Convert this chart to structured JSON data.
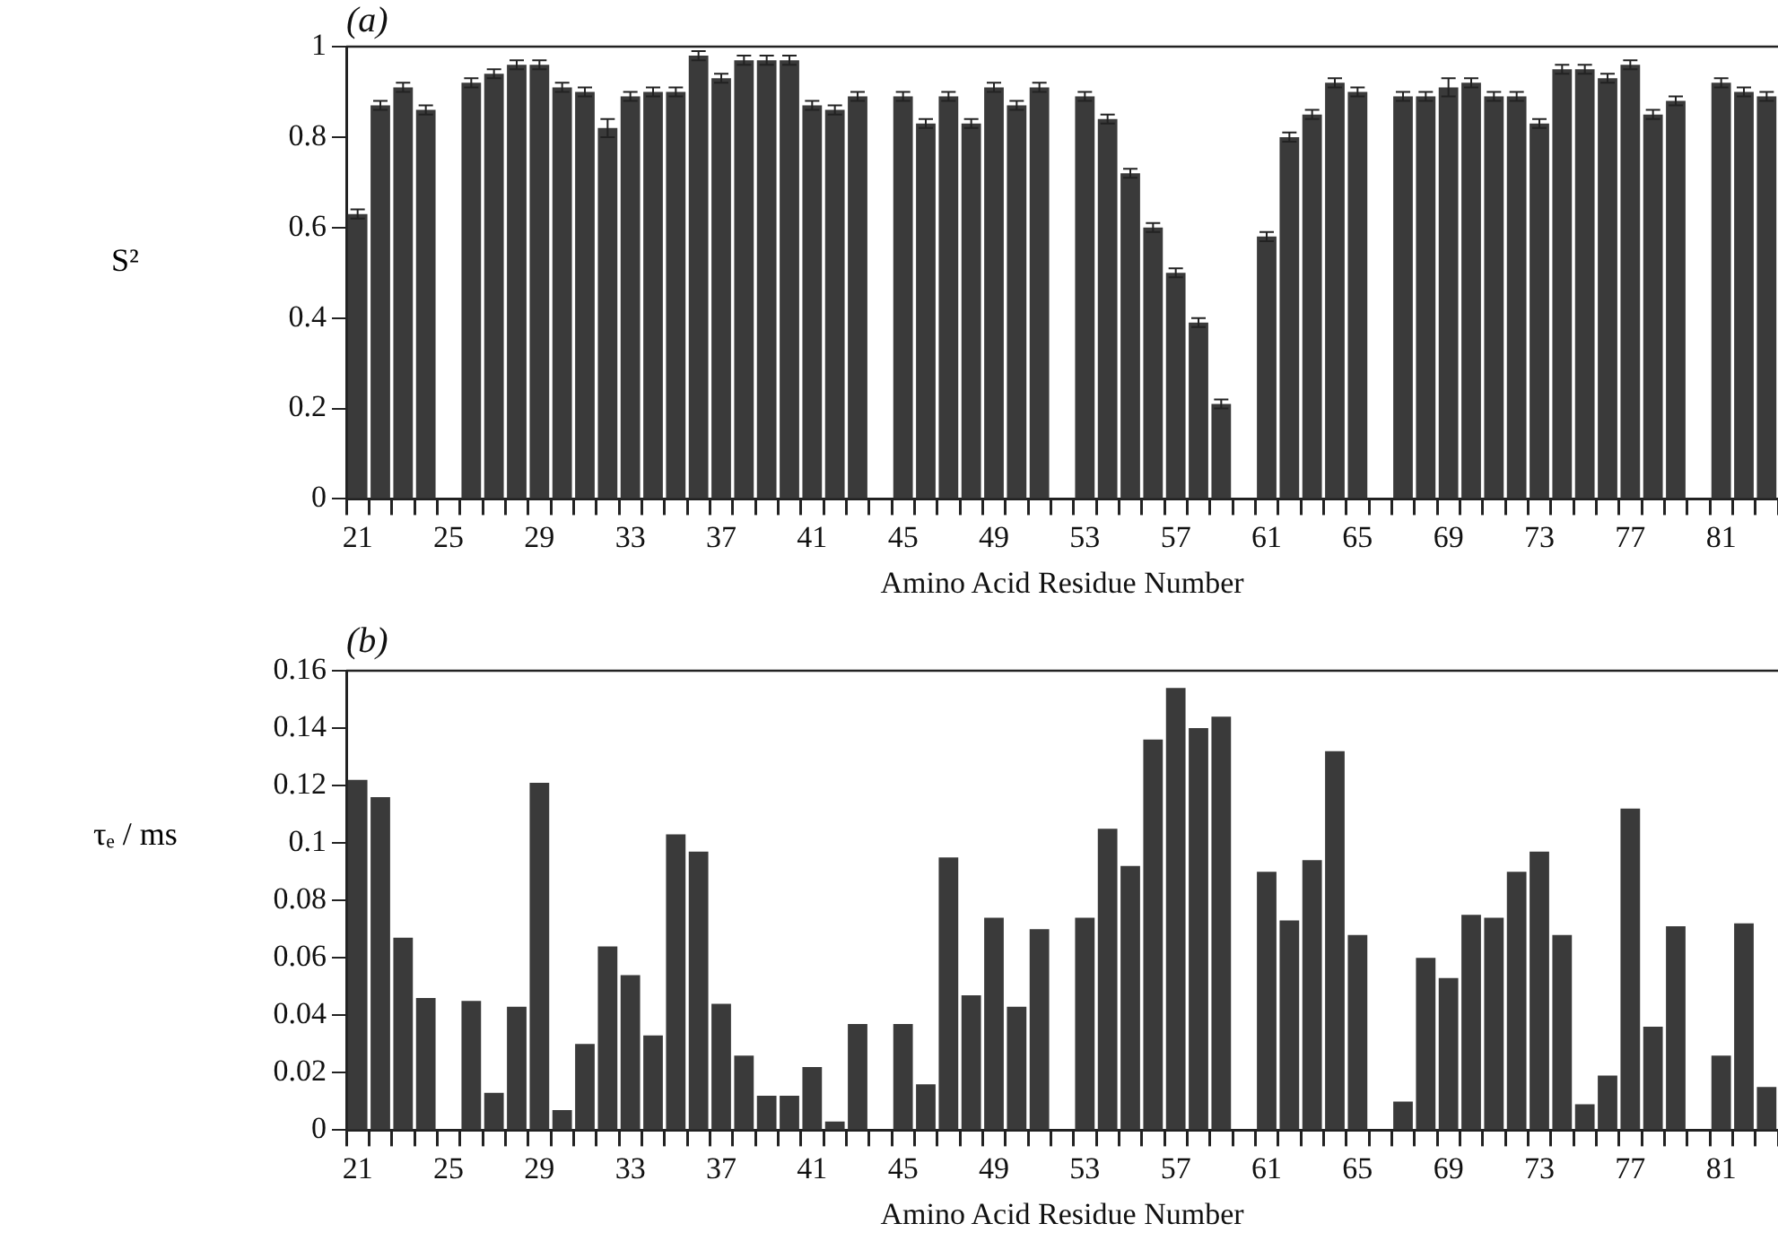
{
  "chart_data": [
    {
      "type": "bar",
      "title": "(a)",
      "ylabel": "S²",
      "xlabel": "Amino Acid Residue Number",
      "color": "#3a3a3a",
      "categories": [
        "21",
        null,
        null,
        null,
        "25",
        null,
        null,
        null,
        "29",
        null,
        null,
        null,
        "33",
        null,
        null,
        null,
        "37",
        null,
        null,
        null,
        "41",
        null,
        null,
        null,
        "45",
        null,
        null,
        null,
        "49",
        null,
        null,
        null,
        "53",
        null,
        null,
        null,
        "57",
        null,
        null,
        null,
        "61",
        null,
        null,
        null,
        "65",
        null,
        null,
        null,
        "69",
        null,
        null,
        null,
        "73",
        null,
        null,
        null,
        "77",
        null,
        null,
        null,
        "81",
        null,
        null
      ],
      "values": [
        0.63,
        0.87,
        0.91,
        0.86,
        null,
        0.92,
        0.94,
        0.96,
        0.96,
        0.91,
        0.9,
        0.82,
        0.89,
        0.9,
        0.9,
        0.98,
        0.93,
        0.97,
        0.97,
        0.97,
        0.87,
        0.86,
        0.89,
        null,
        0.89,
        0.83,
        0.89,
        0.83,
        0.91,
        0.87,
        0.91,
        null,
        0.89,
        0.84,
        0.72,
        0.6,
        0.5,
        0.39,
        0.21,
        null,
        0.58,
        0.8,
        0.85,
        0.92,
        0.9,
        null,
        0.89,
        0.89,
        0.91,
        0.92,
        0.89,
        0.89,
        0.83,
        0.95,
        0.95,
        0.93,
        0.96,
        0.85,
        0.88,
        null,
        0.92,
        0.9,
        0.89
      ],
      "errors": [
        0.01,
        0.01,
        0.01,
        0.01,
        null,
        0.01,
        0.01,
        0.01,
        0.01,
        0.01,
        0.01,
        0.02,
        0.01,
        0.01,
        0.01,
        0.01,
        0.01,
        0.01,
        0.01,
        0.01,
        0.01,
        0.01,
        0.01,
        null,
        0.01,
        0.01,
        0.01,
        0.01,
        0.01,
        0.01,
        0.01,
        null,
        0.01,
        0.01,
        0.01,
        0.01,
        0.01,
        0.01,
        0.01,
        null,
        0.01,
        0.01,
        0.01,
        0.01,
        0.01,
        null,
        0.01,
        0.01,
        0.02,
        0.01,
        0.01,
        0.01,
        0.01,
        0.01,
        0.01,
        0.01,
        0.01,
        0.01,
        0.01,
        null,
        0.01,
        0.01,
        0.01
      ],
      "ylim": [
        0,
        1
      ],
      "yticks": [
        0,
        0.2,
        0.4,
        0.6,
        0.8,
        1
      ]
    },
    {
      "type": "bar",
      "title": "(b)",
      "ylabel": "τₑ / ms",
      "xlabel": "Amino Acid Residue Number",
      "color": "#3a3a3a",
      "categories": [
        "21",
        null,
        null,
        null,
        "25",
        null,
        null,
        null,
        "29",
        null,
        null,
        null,
        "33",
        null,
        null,
        null,
        "37",
        null,
        null,
        null,
        "41",
        null,
        null,
        null,
        "45",
        null,
        null,
        null,
        "49",
        null,
        null,
        null,
        "53",
        null,
        null,
        null,
        "57",
        null,
        null,
        null,
        "61",
        null,
        null,
        null,
        "65",
        null,
        null,
        null,
        "69",
        null,
        null,
        null,
        "73",
        null,
        null,
        null,
        "77",
        null,
        null,
        null,
        "81",
        null,
        null
      ],
      "values": [
        0.122,
        0.116,
        0.067,
        0.046,
        null,
        0.045,
        0.013,
        0.043,
        0.121,
        0.007,
        0.03,
        0.064,
        0.054,
        0.033,
        0.103,
        0.097,
        0.044,
        0.026,
        0.012,
        0.012,
        0.022,
        0.003,
        0.037,
        null,
        0.037,
        0.016,
        0.095,
        0.047,
        0.074,
        0.043,
        0.07,
        null,
        0.074,
        0.105,
        0.092,
        0.136,
        0.154,
        0.14,
        0.144,
        null,
        0.09,
        0.073,
        0.094,
        0.132,
        0.068,
        null,
        0.01,
        0.06,
        0.053,
        0.075,
        0.074,
        0.09,
        0.097,
        0.068,
        0.009,
        0.019,
        0.112,
        0.036,
        0.071,
        null,
        0.026,
        0.072,
        0.015
      ],
      "ylim": [
        0,
        0.16
      ],
      "yticks": [
        0,
        0.02,
        0.04,
        0.06,
        0.08,
        0.1,
        0.12,
        0.14,
        0.16
      ]
    }
  ]
}
